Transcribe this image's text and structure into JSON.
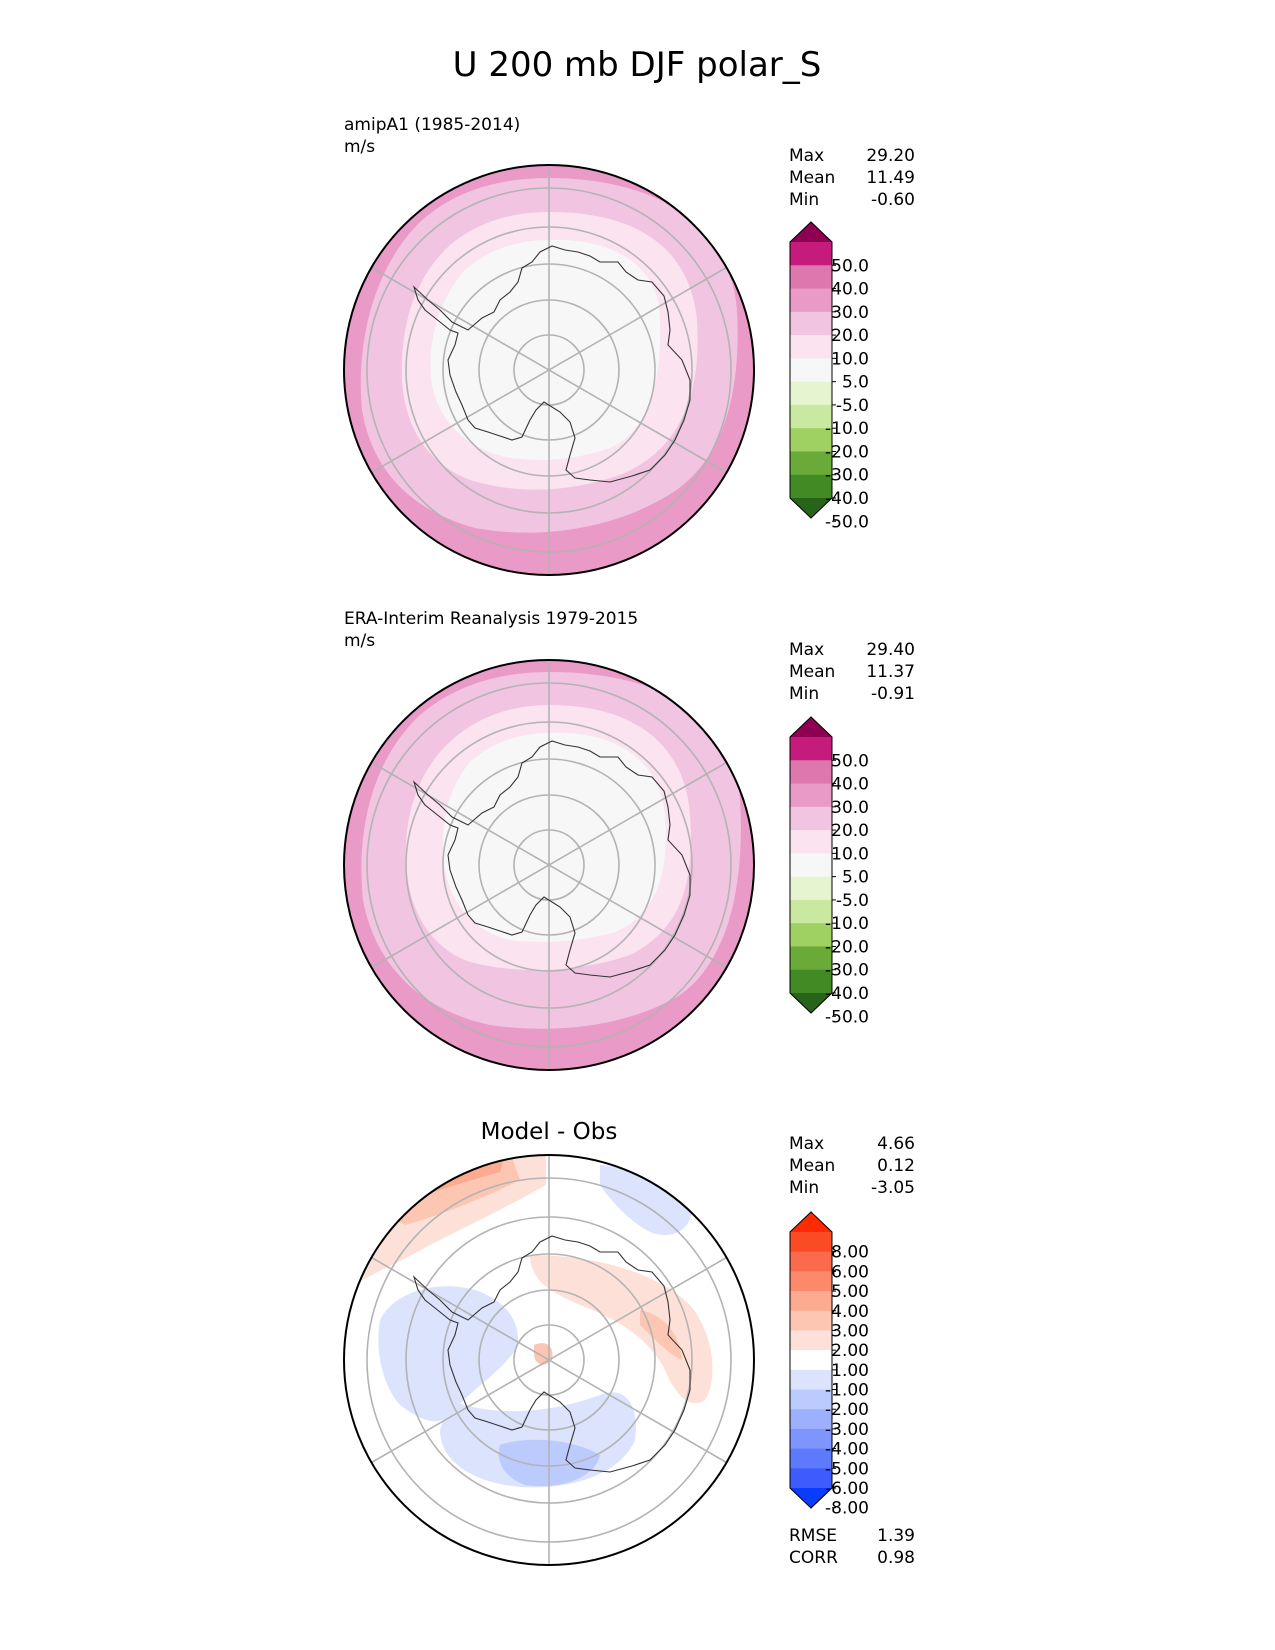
{
  "title": "U 200 mb DJF polar_S",
  "colors": {
    "background": "#ffffff",
    "grid": "#b3b3b3",
    "coast": "#333333"
  },
  "chart_data": [
    {
      "type": "heatmap",
      "projection": "south-polar-stereographic",
      "title": "",
      "subtitle": "amipA1 (1985-2014)",
      "units": "m/s",
      "stats": [
        {
          "label": "Max",
          "value": "29.20"
        },
        {
          "label": "Mean",
          "value": "11.49"
        },
        {
          "label": "Min",
          "value": "-0.60"
        }
      ],
      "colorbar": {
        "labels": [
          "50.0",
          "40.0",
          "30.0",
          "20.0",
          "10.0",
          "5.0",
          "-5.0",
          "-10.0",
          "-20.0",
          "-30.0",
          "-40.0",
          "-50.0"
        ],
        "colors": [
          "#8e0152",
          "#c51b7d",
          "#de77ae",
          "#e99ac6",
          "#f1c4e1",
          "#fbe3f0",
          "#f7f7f7",
          "#e6f5d0",
          "#c9e8a0",
          "#9fd062",
          "#6aaa38",
          "#418a24",
          "#276419"
        ]
      },
      "field": {
        "contour_bands_inner_to_outer": [
          "5.0 to -5.0",
          "5.0 to 10.0",
          "10.0 to 20.0",
          "20.0 to 30.0"
        ],
        "band_colors": [
          "#f7f7f7",
          "#fbe3f0",
          "#f1c4e1",
          "#e99ac6"
        ]
      }
    },
    {
      "type": "heatmap",
      "projection": "south-polar-stereographic",
      "title": "",
      "subtitle": "ERA-Interim Reanalysis 1979-2015",
      "units": "m/s",
      "stats": [
        {
          "label": "Max",
          "value": "29.40"
        },
        {
          "label": "Mean",
          "value": "11.37"
        },
        {
          "label": "Min",
          "value": "-0.91"
        }
      ],
      "colorbar": {
        "labels": [
          "50.0",
          "40.0",
          "30.0",
          "20.0",
          "10.0",
          "5.0",
          "-5.0",
          "-10.0",
          "-20.0",
          "-30.0",
          "-40.0",
          "-50.0"
        ],
        "colors": [
          "#8e0152",
          "#c51b7d",
          "#de77ae",
          "#e99ac6",
          "#f1c4e1",
          "#fbe3f0",
          "#f7f7f7",
          "#e6f5d0",
          "#c9e8a0",
          "#9fd062",
          "#6aaa38",
          "#418a24",
          "#276419"
        ]
      },
      "field": {
        "contour_bands_inner_to_outer": [
          "5.0 to -5.0",
          "5.0 to 10.0",
          "10.0 to 20.0",
          "20.0 to 30.0"
        ],
        "band_colors": [
          "#f7f7f7",
          "#fbe3f0",
          "#f1c4e1",
          "#e99ac6"
        ]
      }
    },
    {
      "type": "heatmap",
      "projection": "south-polar-stereographic",
      "title": "Model - Obs",
      "subtitle": "",
      "units": "",
      "stats": [
        {
          "label": "Max",
          "value": "4.66"
        },
        {
          "label": "Mean",
          "value": "0.12"
        },
        {
          "label": "Min",
          "value": "-3.05"
        }
      ],
      "colorbar": {
        "labels": [
          "8.00",
          "6.00",
          "5.00",
          "4.00",
          "3.00",
          "2.00",
          "1.00",
          "-1.00",
          "-2.00",
          "-3.00",
          "-4.00",
          "-5.00",
          "-6.00",
          "-8.00"
        ],
        "colors": [
          "#ff2a00",
          "#fb4b25",
          "#fb6a4a",
          "#fc8a6a",
          "#fcaa90",
          "#fcc6b2",
          "#fde1d8",
          "#ffffff",
          "#dbe3fd",
          "#bccbfd",
          "#9cb0fd",
          "#7d95fd",
          "#5d7afd",
          "#3e5cfd",
          "#0a3cff"
        ]
      },
      "metrics": [
        {
          "label": "RMSE",
          "value": "1.39"
        },
        {
          "label": "CORR",
          "value": "0.98"
        }
      ]
    }
  ]
}
